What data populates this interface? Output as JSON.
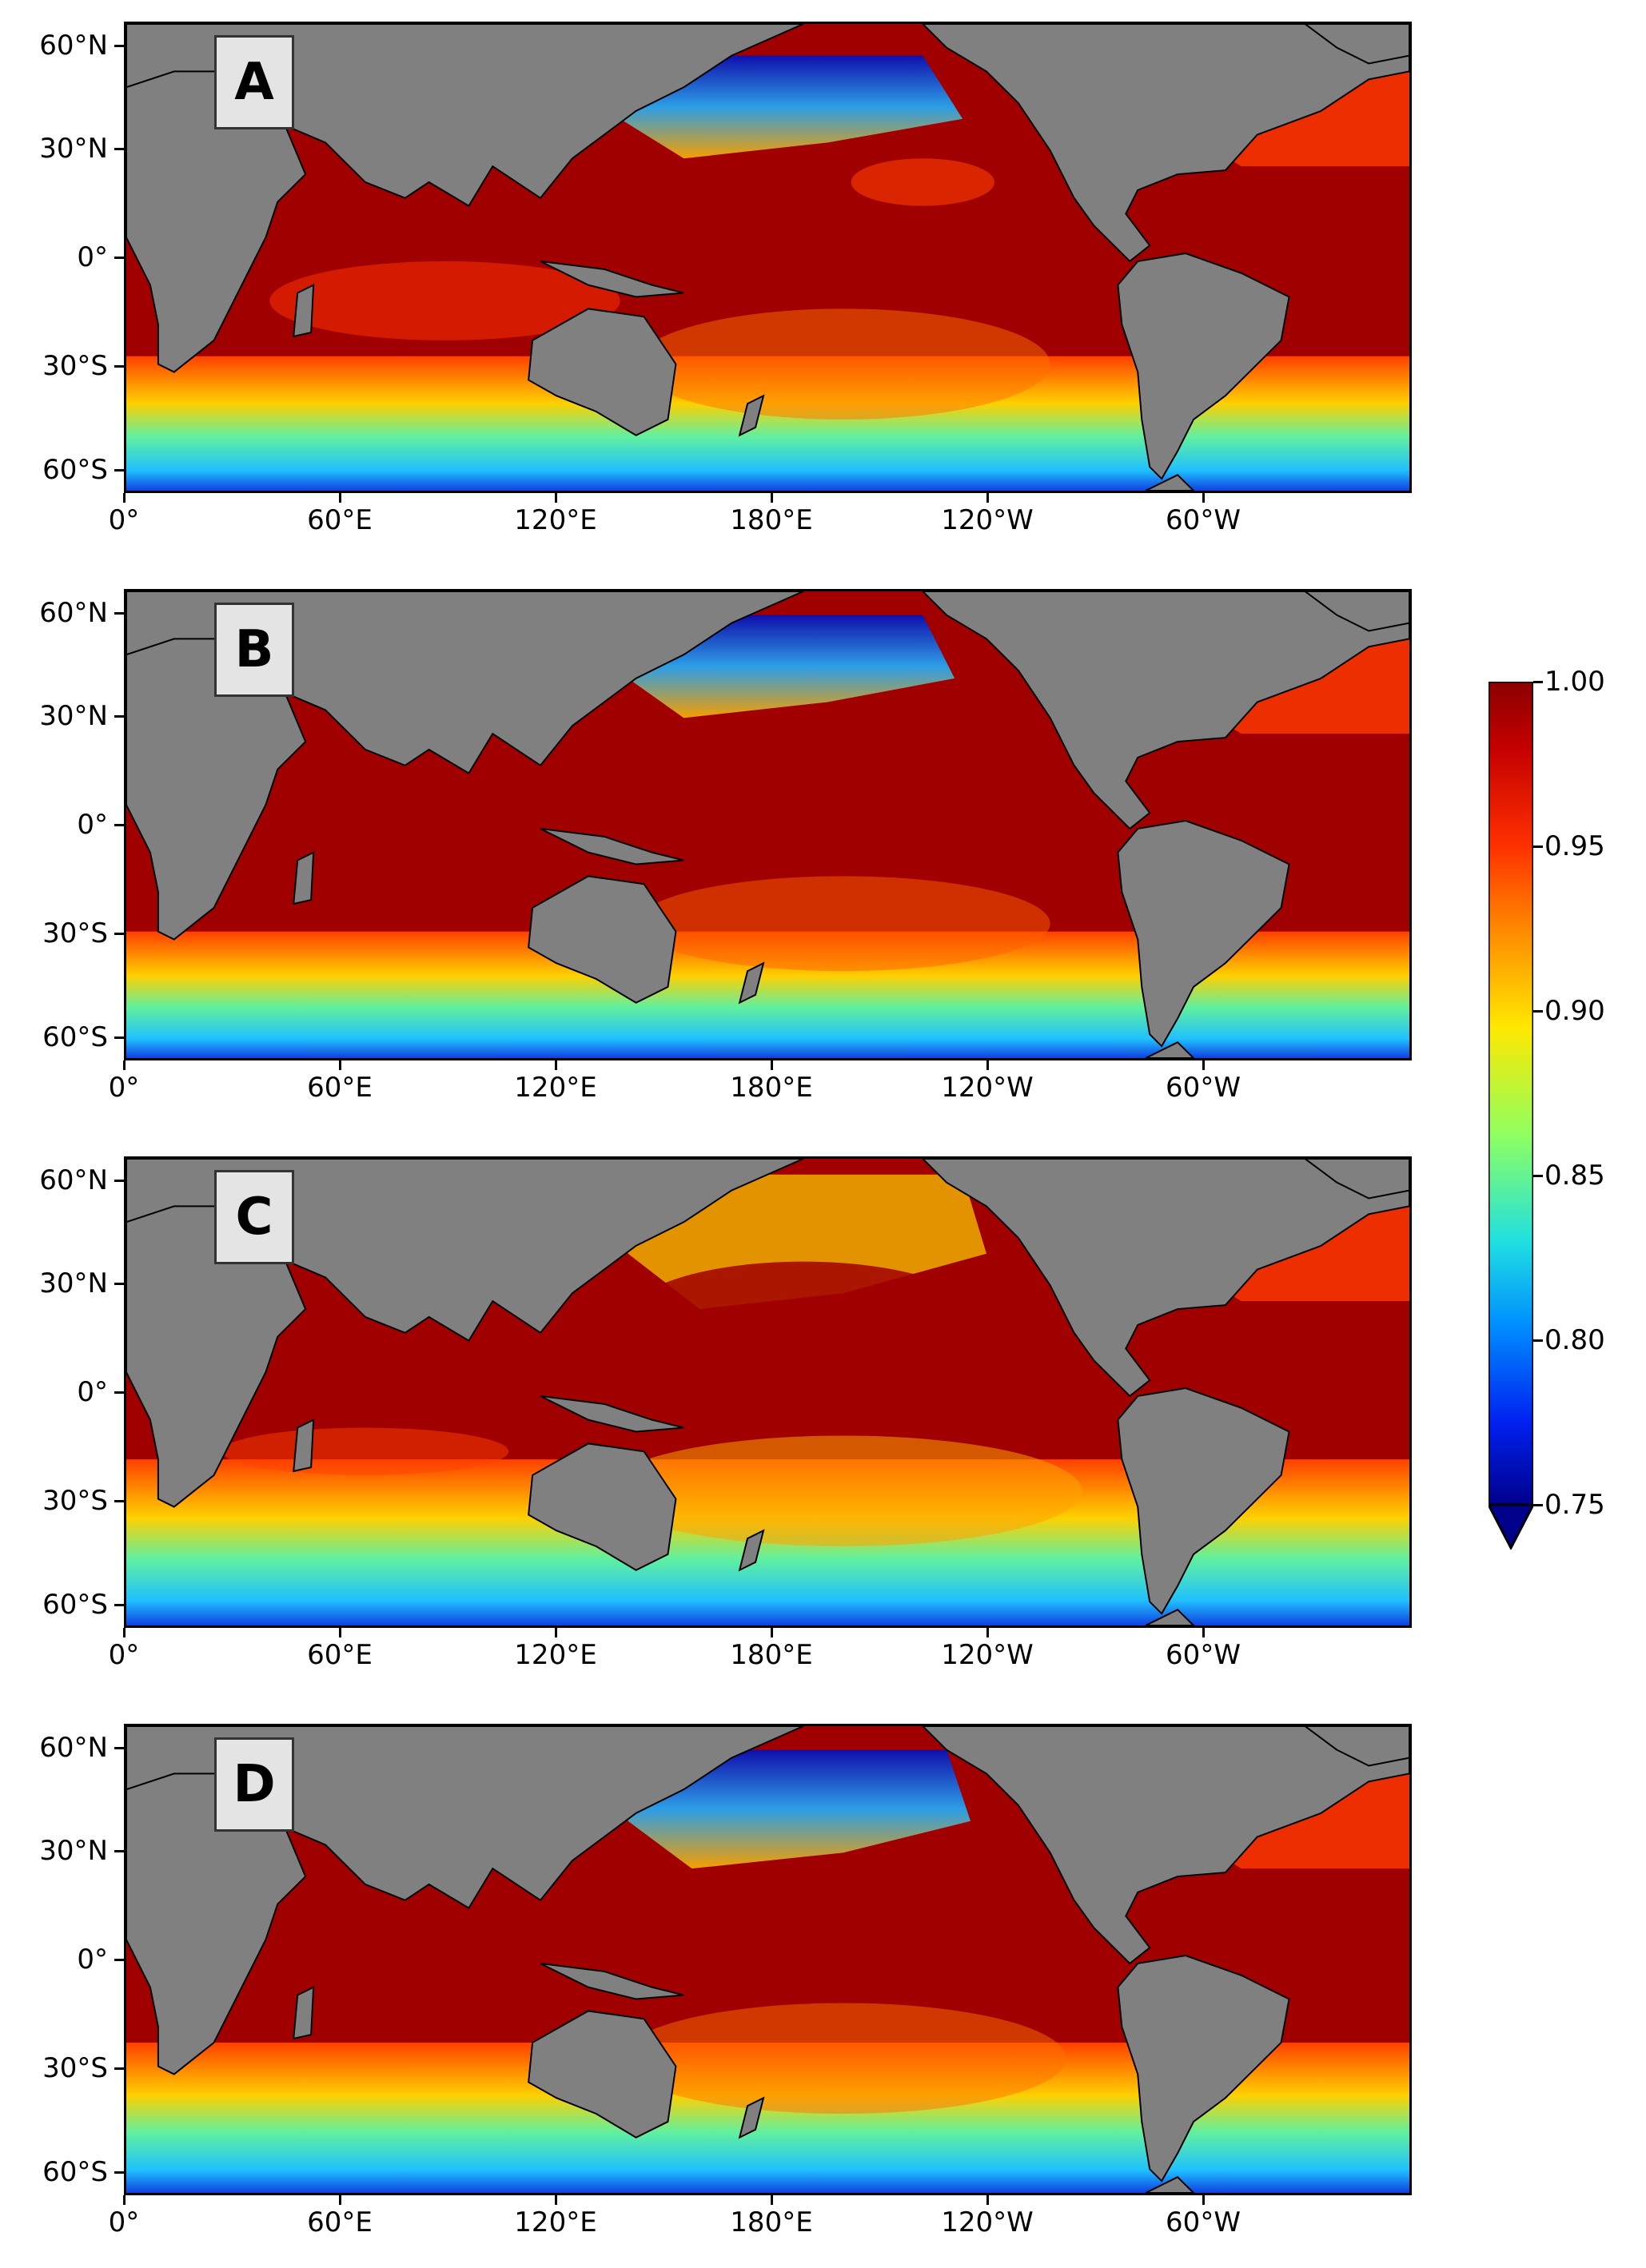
{
  "panels": [
    {
      "label": "A"
    },
    {
      "label": "B"
    },
    {
      "label": "C"
    },
    {
      "label": "D"
    }
  ],
  "axes": {
    "lat_ticks": [
      "60°N",
      "30°N",
      "0°",
      "30°S",
      "60°S"
    ],
    "lon_ticks": [
      "0°",
      "60°E",
      "120°E",
      "180°E",
      "120°W",
      "60°W"
    ]
  },
  "colorbar": {
    "colormap": "jet",
    "range": [
      0.75,
      1.0
    ],
    "extend": "min",
    "ticks": [
      "1.00",
      "0.95",
      "0.90",
      "0.85",
      "0.80",
      "0.75"
    ]
  },
  "colors": {
    "land": "#808080",
    "ocean_high": "#8b0000",
    "ocean_low": "#00008b"
  }
}
